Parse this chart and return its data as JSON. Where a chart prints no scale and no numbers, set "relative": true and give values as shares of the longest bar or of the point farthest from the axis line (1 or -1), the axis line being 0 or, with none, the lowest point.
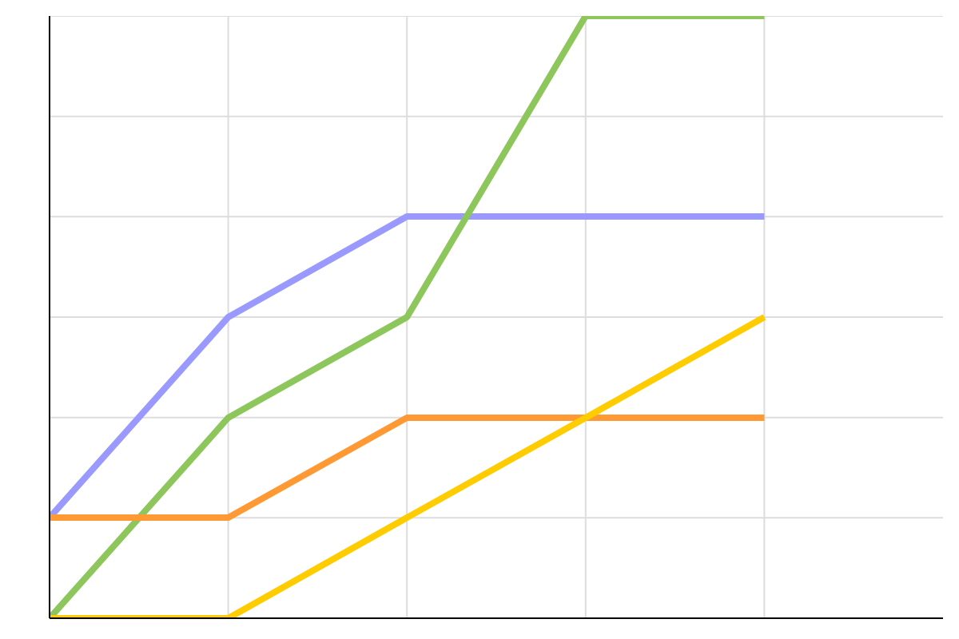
{
  "chart_data": {
    "type": "line",
    "relative": true,
    "categories": [
      null,
      null,
      null,
      null,
      null
    ],
    "grid": true,
    "marker": "none",
    "line_style": "solid",
    "series": [
      {
        "color": "#9999ff",
        "values": [
          0.167,
          0.5,
          0.667,
          0.667,
          0.667
        ]
      },
      {
        "color": "#8dc65a",
        "values": [
          0,
          0.333,
          0.5,
          1,
          1
        ]
      },
      {
        "color": "#ff9933",
        "values": [
          0.167,
          0.167,
          0.333,
          0.333,
          0.333
        ]
      },
      {
        "color": "#ffcc00",
        "values": [
          0,
          0,
          0.167,
          0.333,
          0.5
        ]
      }
    ]
  }
}
